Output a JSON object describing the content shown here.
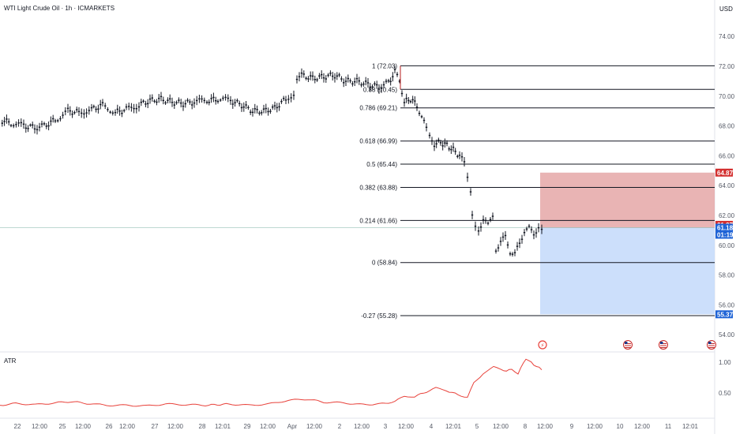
{
  "header": {
    "title": "WTI Light Crude Oil · 1h · ICMARKETS",
    "currency": "USD"
  },
  "indicator": {
    "name": "ATR"
  },
  "colors": {
    "up": "#131722",
    "down": "#131722",
    "fib_line": "#131722",
    "loss_zone": "#e5a7a7",
    "profit_zone": "#c6dcfb",
    "stop_tag": "#d32f2f",
    "target_tag": "#1e63d6",
    "price_tag": "#1e63d6",
    "atr_line": "#e8413a"
  },
  "chart_data": [
    {
      "type": "candlestick",
      "title": "WTI Light Crude Oil · 1h · ICMARKETS",
      "ylim": [
        52.2,
        77.0
      ],
      "yticks": [
        "54.00",
        "56.00",
        "58.00",
        "60.00",
        "62.00",
        "64.00",
        "66.00",
        "68.00",
        "70.00",
        "72.00",
        "74.00"
      ],
      "xticks": [
        "22",
        "12:00",
        "25",
        "12:00",
        "26",
        "12:00",
        "27",
        "12:00",
        "28",
        "12:01",
        "29",
        "12:00",
        "Apr",
        "12:00",
        "2",
        "12:00",
        "3",
        "12:00",
        "4",
        "12:01",
        "5",
        "12:00",
        "8",
        "12:00",
        "9",
        "12:00",
        "10",
        "12:00",
        "11",
        "12:01"
      ],
      "price_path": [
        [
          0,
          68.4
        ],
        [
          14,
          68.2
        ],
        [
          30,
          68.0
        ],
        [
          44,
          67.9
        ],
        [
          56,
          68.0
        ],
        [
          70,
          68.4
        ],
        [
          86,
          69.0
        ],
        [
          100,
          68.9
        ],
        [
          116,
          69.1
        ],
        [
          130,
          69.4
        ],
        [
          146,
          68.9
        ],
        [
          160,
          69.1
        ],
        [
          176,
          69.4
        ],
        [
          190,
          69.7
        ],
        [
          204,
          69.8
        ],
        [
          218,
          69.6
        ],
        [
          232,
          69.5
        ],
        [
          246,
          69.6
        ],
        [
          262,
          69.7
        ],
        [
          276,
          69.8
        ],
        [
          292,
          69.7
        ],
        [
          306,
          69.4
        ],
        [
          320,
          69.0
        ],
        [
          334,
          69.0
        ],
        [
          348,
          69.2
        ],
        [
          362,
          69.8
        ],
        [
          372,
          70.2
        ],
        [
          376,
          71.3
        ],
        [
          382,
          71.4
        ],
        [
          396,
          71.2
        ],
        [
          410,
          71.3
        ],
        [
          424,
          71.4
        ],
        [
          438,
          71.0
        ],
        [
          452,
          71.0
        ],
        [
          466,
          70.8
        ],
        [
          480,
          70.6
        ],
        [
          492,
          70.9
        ],
        [
          500,
          71.6
        ],
        [
          506,
          71.1
        ],
        [
          512,
          69.6
        ],
        [
          520,
          69.8
        ],
        [
          528,
          69.4
        ],
        [
          534,
          68.6
        ],
        [
          540,
          67.8
        ],
        [
          544,
          67.2
        ],
        [
          550,
          66.8
        ],
        [
          558,
          66.9
        ],
        [
          566,
          66.7
        ],
        [
          574,
          66.4
        ],
        [
          582,
          66.0
        ],
        [
          588,
          65.5
        ],
        [
          592,
          64.4
        ],
        [
          596,
          63.4
        ],
        [
          598,
          62.2
        ],
        [
          602,
          61.4
        ],
        [
          606,
          61.0
        ],
        [
          612,
          61.8
        ],
        [
          618,
          61.3
        ],
        [
          624,
          62.1
        ],
        [
          628,
          59.7
        ],
        [
          634,
          60.3
        ],
        [
          640,
          60.5
        ],
        [
          646,
          59.6
        ],
        [
          652,
          59.4
        ],
        [
          658,
          60.1
        ],
        [
          664,
          61.0
        ],
        [
          670,
          61.1
        ],
        [
          676,
          60.8
        ],
        [
          682,
          61.2
        ],
        [
          686,
          61.18
        ]
      ],
      "fibonacci": [
        {
          "label": "1 (72.03)",
          "value": 72.03
        },
        {
          "label": "0.88 (70.45)",
          "value": 70.45
        },
        {
          "label": "0.786 (69.21)",
          "value": 69.21
        },
        {
          "label": "0.618 (66.99)",
          "value": 66.99
        },
        {
          "label": "0.5 (65.44)",
          "value": 65.44
        },
        {
          "label": "0.382 (63.88)",
          "value": 63.88
        },
        {
          "label": "0.214 (61.66)",
          "value": 61.66
        },
        {
          "label": "0 (58.84)",
          "value": 58.84
        },
        {
          "label": "-0.27 (55.28)",
          "value": 55.28
        }
      ],
      "position": {
        "entry": 61.18,
        "stop": 64.87,
        "target": 55.37
      },
      "price_tags": [
        {
          "label": "64.87",
          "value": 64.87,
          "color": "#d32f2f"
        },
        {
          "label": "61.37",
          "value": 61.37,
          "color": "#d32f2f"
        },
        {
          "label": "61.18",
          "value": 61.18,
          "color": "#1e63d6"
        },
        {
          "label": "01:19",
          "value": 60.45,
          "color": "#1e63d6"
        },
        {
          "label": "55.37",
          "value": 55.37,
          "color": "#1e63d6"
        }
      ]
    },
    {
      "type": "line",
      "title": "ATR",
      "ylim": [
        0.25,
        1.1
      ],
      "yticks": [
        "0.50",
        "1.00"
      ],
      "series": [
        {
          "values": [
            [
              0,
              0.3
            ],
            [
              20,
              0.33
            ],
            [
              45,
              0.31
            ],
            [
              70,
              0.34
            ],
            [
              90,
              0.36
            ],
            [
              110,
              0.33
            ],
            [
              135,
              0.3
            ],
            [
              160,
              0.3
            ],
            [
              185,
              0.29
            ],
            [
              210,
              0.32
            ],
            [
              235,
              0.31
            ],
            [
              260,
              0.3
            ],
            [
              290,
              0.32
            ],
            [
              315,
              0.3
            ],
            [
              340,
              0.32
            ],
            [
              365,
              0.38
            ],
            [
              390,
              0.4
            ],
            [
              410,
              0.35
            ],
            [
              435,
              0.34
            ],
            [
              460,
              0.31
            ],
            [
              480,
              0.32
            ],
            [
              500,
              0.36
            ],
            [
              512,
              0.45
            ],
            [
              525,
              0.44
            ],
            [
              540,
              0.52
            ],
            [
              552,
              0.58
            ],
            [
              565,
              0.54
            ],
            [
              580,
              0.47
            ],
            [
              592,
              0.43
            ],
            [
              600,
              0.66
            ],
            [
              612,
              0.82
            ],
            [
              625,
              0.92
            ],
            [
              638,
              0.86
            ],
            [
              648,
              0.88
            ],
            [
              656,
              0.82
            ],
            [
              666,
              1.06
            ],
            [
              676,
              0.96
            ],
            [
              686,
              0.88
            ]
          ]
        }
      ]
    }
  ]
}
